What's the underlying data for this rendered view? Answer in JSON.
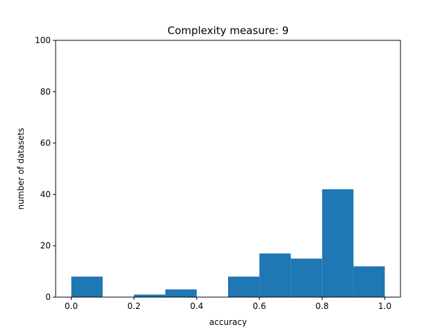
{
  "chart_data": {
    "type": "bar",
    "title": "Complexity measure: 9",
    "xlabel": "accuracy",
    "ylabel": "number of datasets",
    "xlim": [
      -0.05,
      1.05
    ],
    "ylim": [
      0,
      100
    ],
    "xticks": [
      0.0,
      0.2,
      0.4,
      0.6,
      0.8,
      1.0
    ],
    "xtick_labels": [
      "0.0",
      "0.2",
      "0.4",
      "0.6",
      "0.8",
      "1.0"
    ],
    "yticks": [
      0,
      20,
      40,
      60,
      80,
      100
    ],
    "ytick_labels": [
      "0",
      "20",
      "40",
      "60",
      "80",
      "100"
    ],
    "bin_edges": [
      0.0,
      0.1,
      0.2,
      0.3,
      0.4,
      0.5,
      0.6,
      0.7,
      0.8,
      0.9,
      1.0
    ],
    "values": [
      8,
      0,
      1,
      3,
      0,
      8,
      17,
      15,
      42,
      12
    ],
    "grid": false,
    "bar_color": "#1f77b4"
  }
}
